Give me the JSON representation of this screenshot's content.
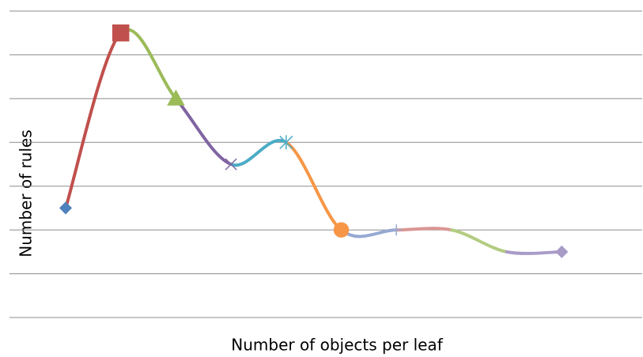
{
  "chart_data": {
    "type": "line",
    "x_label": "Number of objects per leaf",
    "y_label": "Number of rules",
    "categories": [
      null,
      null,
      null,
      null,
      null,
      null,
      null,
      null,
      null,
      null
    ],
    "series": [
      {
        "values": [
          2.5,
          6.5,
          5,
          3.5,
          4,
          2,
          2,
          2,
          1.5,
          1.5
        ],
        "colors": [
          "#4F81BD",
          "#C0504D",
          "#9BBB59",
          "#8064A2",
          "#4BACC6",
          "#F79646",
          "#95A9D3",
          "#D99694",
          "#B3CC82",
          "#A99BC8"
        ],
        "markers": [
          "diamond",
          "square",
          "triangle",
          "x",
          "star",
          "circle",
          "plus",
          "none",
          "none",
          "diamond"
        ]
      }
    ],
    "ylim": [
      0,
      7
    ],
    "yticks": [
      0,
      1,
      2,
      3,
      4,
      5,
      6,
      7
    ],
    "grid": true,
    "smooth": true
  }
}
